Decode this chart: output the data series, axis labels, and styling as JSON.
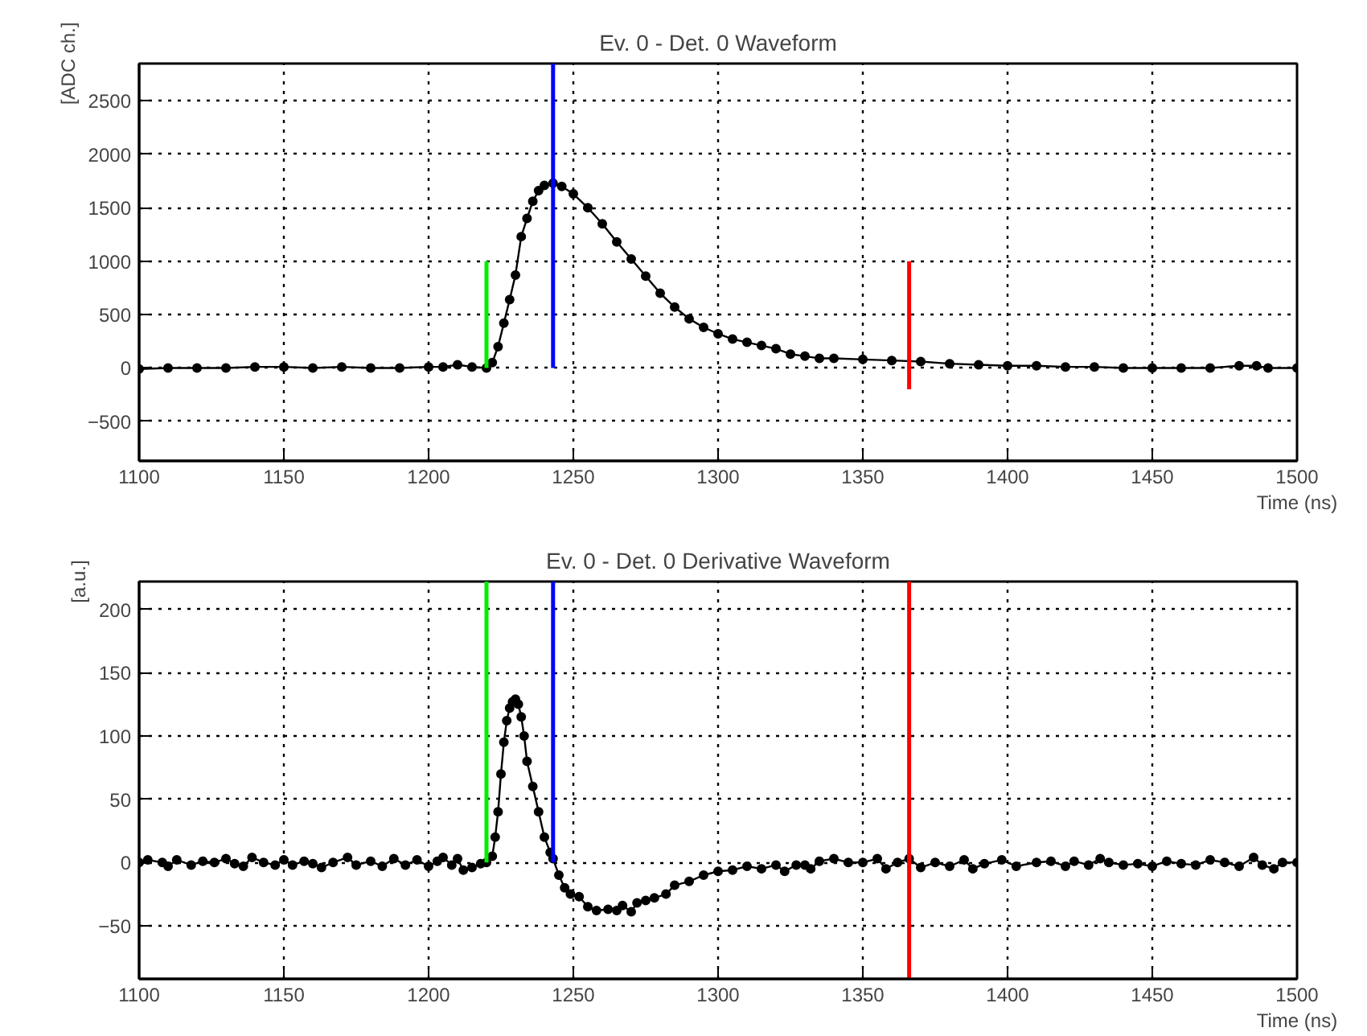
{
  "chart_data": [
    {
      "type": "line",
      "title": "Ev. 0 - Det. 0 Waveform",
      "xlabel": "Time (ns)",
      "ylabel": "[ADC ch.]",
      "xlim": [
        1100,
        1500
      ],
      "ylim": [
        -870,
        2850
      ],
      "xticks": [
        1100,
        1150,
        1200,
        1250,
        1300,
        1350,
        1400,
        1450,
        1500
      ],
      "yticks": [
        -500,
        0,
        500,
        1000,
        1500,
        2000,
        2500
      ],
      "grid": true,
      "marker": "circle",
      "line_style": "solid",
      "series": [
        {
          "color": "#000000",
          "x": [
            1100,
            1110,
            1120,
            1130,
            1140,
            1150,
            1160,
            1170,
            1180,
            1190,
            1200,
            1205,
            1210,
            1215,
            1220,
            1222,
            1224,
            1226,
            1228,
            1230,
            1232,
            1234,
            1236,
            1238,
            1240,
            1243,
            1246,
            1250,
            1255,
            1260,
            1265,
            1270,
            1275,
            1280,
            1285,
            1290,
            1295,
            1300,
            1305,
            1310,
            1315,
            1320,
            1325,
            1330,
            1335,
            1340,
            1350,
            1360,
            1370,
            1380,
            1390,
            1400,
            1410,
            1420,
            1430,
            1440,
            1450,
            1460,
            1470,
            1480,
            1486,
            1490,
            1500
          ],
          "values": [
            -10,
            0,
            0,
            0,
            10,
            10,
            0,
            10,
            0,
            0,
            10,
            10,
            30,
            10,
            0,
            50,
            200,
            420,
            640,
            870,
            1230,
            1400,
            1560,
            1660,
            1710,
            1730,
            1700,
            1630,
            1500,
            1350,
            1180,
            1020,
            860,
            700,
            570,
            460,
            380,
            320,
            270,
            240,
            210,
            180,
            130,
            110,
            90,
            90,
            80,
            70,
            60,
            40,
            30,
            20,
            20,
            10,
            10,
            0,
            0,
            0,
            0,
            20,
            20,
            0,
            0
          ]
        },
        {
          "color": "#00ee00",
          "marker": "none",
          "x": [
            1220,
            1220
          ],
          "values": [
            0,
            1000
          ]
        },
        {
          "color": "#0000ff",
          "marker": "none",
          "x": [
            1243,
            1243
          ],
          "values": [
            0,
            2850
          ]
        },
        {
          "color": "#ff0000",
          "marker": "none",
          "x": [
            1366,
            1366
          ],
          "values": [
            -200,
            1000
          ]
        }
      ]
    },
    {
      "type": "line",
      "title": "Ev. 0 - Det. 0 Derivative Waveform",
      "xlabel": "Time (ns)",
      "ylabel": "[a.u.]",
      "xlim": [
        1100,
        1500
      ],
      "ylim": [
        -92,
        222
      ],
      "xticks": [
        1100,
        1150,
        1200,
        1250,
        1300,
        1350,
        1400,
        1450,
        1500
      ],
      "yticks": [
        -50,
        0,
        50,
        100,
        150,
        200
      ],
      "grid": true,
      "marker": "circle",
      "line_style": "solid",
      "series": [
        {
          "color": "#000000",
          "x": [
            1100,
            1103,
            1108,
            1110,
            1113,
            1118,
            1122,
            1126,
            1130,
            1133,
            1136,
            1139,
            1143,
            1147,
            1150,
            1153,
            1157,
            1160,
            1163,
            1167,
            1172,
            1175,
            1180,
            1184,
            1188,
            1192,
            1196,
            1200,
            1203,
            1205,
            1208,
            1210,
            1212,
            1215,
            1218,
            1220,
            1222,
            1223,
            1224,
            1225,
            1226,
            1227,
            1228,
            1229,
            1230,
            1231,
            1232,
            1233,
            1234,
            1236,
            1238,
            1240,
            1242,
            1243,
            1245,
            1247,
            1249,
            1252,
            1255,
            1258,
            1262,
            1265,
            1267,
            1270,
            1272,
            1275,
            1278,
            1282,
            1285,
            1290,
            1295,
            1300,
            1305,
            1310,
            1315,
            1320,
            1323,
            1327,
            1330,
            1332,
            1335,
            1340,
            1345,
            1350,
            1355,
            1358,
            1362,
            1366,
            1370,
            1375,
            1380,
            1385,
            1388,
            1392,
            1398,
            1403,
            1410,
            1415,
            1420,
            1423,
            1428,
            1432,
            1435,
            1440,
            1445,
            1450,
            1455,
            1460,
            1465,
            1470,
            1475,
            1480,
            1485,
            1488,
            1492,
            1495,
            1500
          ],
          "values": [
            0,
            2,
            0,
            -3,
            2,
            -2,
            1,
            0,
            3,
            -1,
            -3,
            4,
            0,
            -2,
            2,
            -2,
            1,
            -1,
            -4,
            0,
            4,
            -2,
            1,
            -3,
            3,
            -2,
            2,
            -3,
            1,
            4,
            -2,
            3,
            -6,
            -4,
            -1,
            0,
            5,
            20,
            40,
            70,
            95,
            112,
            122,
            127,
            129,
            125,
            115,
            100,
            80,
            60,
            40,
            20,
            8,
            3,
            -10,
            -20,
            -25,
            -27,
            -35,
            -38,
            -37,
            -38,
            -34,
            -39,
            -32,
            -30,
            -28,
            -25,
            -18,
            -15,
            -10,
            -7,
            -6,
            -3,
            -5,
            -2,
            -7,
            -2,
            -2,
            -5,
            1,
            3,
            0,
            0,
            3,
            -5,
            0,
            3,
            -4,
            0,
            -3,
            2,
            -5,
            -1,
            2,
            -3,
            0,
            1,
            -3,
            1,
            -2,
            3,
            0,
            -2,
            -1,
            -3,
            1,
            -1,
            -2,
            2,
            0,
            -3,
            4,
            -2,
            -5,
            0,
            0
          ]
        },
        {
          "color": "#00ee00",
          "marker": "none",
          "x": [
            1220,
            1220
          ],
          "values": [
            0,
            222
          ]
        },
        {
          "color": "#0000ff",
          "marker": "none",
          "x": [
            1243,
            1243
          ],
          "values": [
            0,
            222
          ]
        },
        {
          "color": "#ff0000",
          "marker": "none",
          "x": [
            1366,
            1366
          ],
          "values": [
            -92,
            222
          ]
        }
      ]
    }
  ]
}
